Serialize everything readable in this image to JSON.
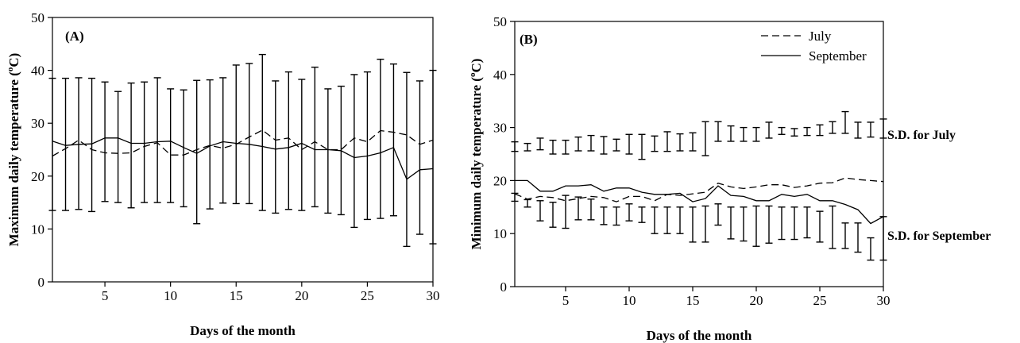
{
  "chart_data": [
    {
      "type": "line",
      "panel_label": "(A)",
      "xlabel": "Days of the month",
      "ylabel": "Maximum daily temperature (",
      "ylabel_sup": "o",
      "ylabel_unit": "C)",
      "xlim": [
        1,
        30
      ],
      "ylim": [
        0,
        50
      ],
      "xticks": [
        5,
        10,
        15,
        20,
        25,
        30
      ],
      "yticks": [
        0,
        10,
        20,
        30,
        40,
        50
      ],
      "grid": false,
      "x": [
        1,
        2,
        3,
        4,
        5,
        6,
        7,
        8,
        9,
        10,
        11,
        12,
        13,
        14,
        15,
        16,
        17,
        18,
        19,
        20,
        21,
        22,
        23,
        24,
        25,
        26,
        27,
        28,
        29,
        30
      ],
      "series": [
        {
          "style": "dashed",
          "values": [
            23.8,
            25.2,
            26.8,
            25.0,
            24.4,
            24.3,
            24.4,
            25.6,
            26.3,
            24.0,
            24.0,
            25.0,
            25.8,
            25.3,
            26.0,
            27.4,
            28.7,
            26.8,
            27.2,
            25.0,
            26.5,
            25.0,
            25.0,
            27.2,
            26.5,
            28.6,
            28.3,
            27.8,
            26.0,
            26.8
          ],
          "sd_low": [
            13.5,
            13.5,
            13.7,
            13.3,
            15.2,
            15.0,
            14.0,
            15.0,
            15.0,
            15.0,
            14.2,
            11.0,
            13.8,
            14.9,
            14.8,
            14.8,
            13.5,
            13.0,
            13.7,
            13.5,
            14.2,
            13.0,
            12.7,
            10.3,
            11.8,
            12.0,
            12.5,
            6.7,
            9.0,
            7.2
          ],
          "sd_high": [
            38.5,
            38.5,
            38.6,
            38.5,
            37.8,
            36.0,
            37.6,
            37.8,
            38.6,
            36.5,
            36.3,
            38.1,
            38.2,
            38.6,
            41.0,
            41.3,
            43.0,
            38.0,
            39.7,
            38.3,
            40.6,
            36.5,
            37.0,
            39.2,
            39.7,
            42.1,
            41.2,
            39.6,
            38.0,
            40.0
          ]
        },
        {
          "style": "solid",
          "values": [
            26.6,
            25.8,
            26.0,
            26.1,
            27.2,
            27.2,
            26.2,
            26.2,
            26.5,
            26.6,
            25.4,
            24.3,
            25.7,
            26.5,
            26.2,
            26.0,
            25.6,
            25.1,
            25.4,
            26.2,
            25.0,
            25.0,
            24.8,
            23.5,
            23.8,
            24.4,
            25.4,
            19.4,
            21.2,
            21.4
          ],
          "sd_low": [],
          "sd_high": []
        }
      ]
    },
    {
      "type": "line",
      "panel_label": "(B)",
      "xlabel": "Days of the month",
      "ylabel": "Minimum daily temperature (",
      "ylabel_sup": "o",
      "ylabel_unit": "C)",
      "xlim": [
        1,
        30
      ],
      "ylim": [
        0,
        50
      ],
      "xticks": [
        5,
        10,
        15,
        20,
        25,
        30
      ],
      "yticks": [
        0,
        10,
        20,
        30,
        40,
        50
      ],
      "grid": false,
      "legend": {
        "placement": "top-right",
        "entries": [
          {
            "name": "July",
            "style": "dashed"
          },
          {
            "name": "September",
            "style": "solid"
          }
        ]
      },
      "annotations": [
        "S.D. for July",
        "S.D. for September"
      ],
      "x": [
        1,
        2,
        3,
        4,
        5,
        6,
        7,
        8,
        9,
        10,
        11,
        12,
        13,
        14,
        15,
        16,
        17,
        18,
        19,
        20,
        21,
        22,
        23,
        24,
        25,
        26,
        27,
        28,
        29,
        30
      ],
      "series": [
        {
          "name": "July",
          "style": "dashed",
          "values": [
            17.5,
            16.5,
            17.0,
            16.8,
            16.2,
            16.6,
            17.0,
            16.8,
            16.0,
            17.0,
            17.0,
            16.2,
            17.4,
            17.2,
            17.5,
            17.8,
            19.5,
            18.8,
            18.5,
            18.8,
            19.2,
            19.2,
            18.7,
            19.0,
            19.5,
            19.6,
            20.5,
            20.2,
            20.0,
            19.8
          ],
          "sd_low": [
            25.5,
            25.6,
            25.8,
            25.0,
            25.0,
            25.6,
            25.6,
            25.0,
            25.6,
            25.0,
            24.0,
            25.5,
            25.5,
            25.6,
            25.6,
            24.7,
            27.4,
            27.4,
            27.4,
            27.4,
            28.0,
            28.7,
            28.4,
            28.5,
            28.5,
            28.9,
            28.9,
            28.0,
            28.2,
            28.0
          ],
          "sd_high": [
            27.3,
            27.0,
            28.0,
            27.6,
            27.6,
            28.2,
            28.5,
            28.3,
            27.8,
            28.7,
            28.7,
            28.4,
            29.2,
            28.8,
            29.0,
            31.1,
            31.1,
            30.3,
            30.0,
            30.0,
            31.0,
            30.0,
            29.8,
            30.0,
            30.5,
            31.1,
            33.0,
            31.0,
            31.0,
            31.6
          ]
        },
        {
          "name": "September",
          "style": "solid",
          "values": [
            20.0,
            20.0,
            18.0,
            18.0,
            19.0,
            19.0,
            19.2,
            18.0,
            18.6,
            18.6,
            17.8,
            17.4,
            17.4,
            17.6,
            16.0,
            16.6,
            19.0,
            17.2,
            17.0,
            16.2,
            16.2,
            17.4,
            17.0,
            17.4,
            16.2,
            16.2,
            15.5,
            14.5,
            11.9,
            13.2
          ],
          "sd_low": [
            16.1,
            15.0,
            12.4,
            11.2,
            11.0,
            12.6,
            12.6,
            11.7,
            11.6,
            12.4,
            12.1,
            10.0,
            10.0,
            10.0,
            8.4,
            8.4,
            11.6,
            9.0,
            8.6,
            7.6,
            8.2,
            8.9,
            8.9,
            9.2,
            8.4,
            7.2,
            7.2,
            6.5,
            5.0,
            5.0
          ],
          "sd_high": [
            17.6,
            16.4,
            16.2,
            15.9,
            17.2,
            16.9,
            16.5,
            15.0,
            15.0,
            15.6,
            15.0,
            15.0,
            15.0,
            15.0,
            15.0,
            15.2,
            15.6,
            15.0,
            15.0,
            15.2,
            15.2,
            15.0,
            15.0,
            15.0,
            14.2,
            15.2,
            12.0,
            12.0,
            9.2,
            13.2
          ]
        }
      ]
    }
  ]
}
